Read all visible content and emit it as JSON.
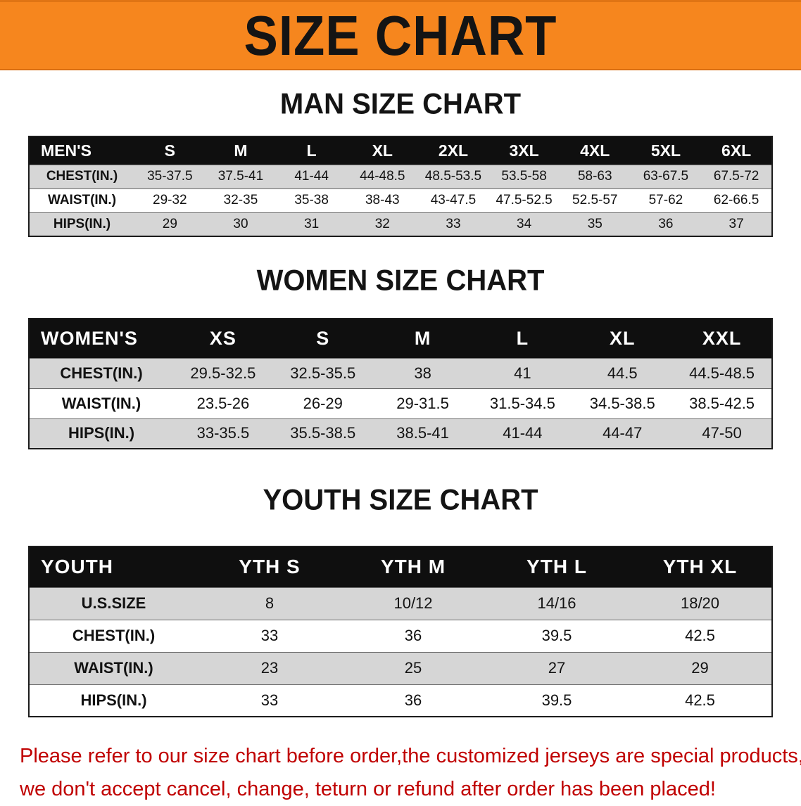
{
  "banner": {
    "title": "SIZE CHART"
  },
  "colors": {
    "banner_bg": "#F6861E",
    "header_bg": "#0F0F0F",
    "row_alt_bg": "#D6D6D6",
    "footer_text": "#C00000"
  },
  "chart_data": [
    {
      "type": "table",
      "title": "MAN SIZE CHART",
      "columns": [
        "MEN'S",
        "S",
        "M",
        "L",
        "XL",
        "2XL",
        "3XL",
        "4XL",
        "5XL",
        "6XL"
      ],
      "rows": [
        [
          "CHEST(IN.)",
          "35-37.5",
          "37.5-41",
          "41-44",
          "44-48.5",
          "48.5-53.5",
          "53.5-58",
          "58-63",
          "63-67.5",
          "67.5-72"
        ],
        [
          "WAIST(IN.)",
          "29-32",
          "32-35",
          "35-38",
          "38-43",
          "43-47.5",
          "47.5-52.5",
          "52.5-57",
          "57-62",
          "62-66.5"
        ],
        [
          "HIPS(IN.)",
          "29",
          "30",
          "31",
          "32",
          "33",
          "34",
          "35",
          "36",
          "37"
        ]
      ]
    },
    {
      "type": "table",
      "title": "WOMEN SIZE CHART",
      "columns": [
        "WOMEN'S",
        "XS",
        "S",
        "M",
        "L",
        "XL",
        "XXL"
      ],
      "rows": [
        [
          "CHEST(IN.)",
          "29.5-32.5",
          "32.5-35.5",
          "38",
          "41",
          "44.5",
          "44.5-48.5"
        ],
        [
          "WAIST(IN.)",
          "23.5-26",
          "26-29",
          "29-31.5",
          "31.5-34.5",
          "34.5-38.5",
          "38.5-42.5"
        ],
        [
          "HIPS(IN.)",
          "33-35.5",
          "35.5-38.5",
          "38.5-41",
          "41-44",
          "44-47",
          "47-50"
        ]
      ]
    },
    {
      "type": "table",
      "title": "YOUTH SIZE CHART",
      "columns": [
        "YOUTH",
        "YTH S",
        "YTH M",
        "YTH L",
        "YTH XL"
      ],
      "rows": [
        [
          "U.S.SIZE",
          "8",
          "10/12",
          "14/16",
          "18/20"
        ],
        [
          "CHEST(IN.)",
          "33",
          "36",
          "39.5",
          "42.5"
        ],
        [
          "WAIST(IN.)",
          "23",
          "25",
          "27",
          "29"
        ],
        [
          "HIPS(IN.)",
          "33",
          "36",
          "39.5",
          "42.5"
        ]
      ]
    }
  ],
  "footer": {
    "line1": "Please refer to our size chart before order,the customized jerseys are special products,",
    "line2": "we don't accept cancel, change, teturn or refund after order has been placed!"
  }
}
